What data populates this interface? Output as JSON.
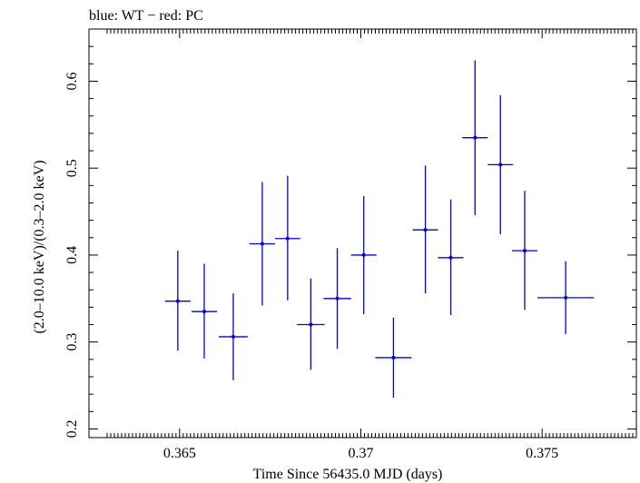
{
  "chart_data": {
    "type": "scatter",
    "title": "blue: WT − red: PC",
    "xlabel": "Time Since 56435.0 MJD (days)",
    "ylabel": "(2.0–10.0 keV)/(0.3–2.0 keV)",
    "xlim": [
      0.3625,
      0.3776
    ],
    "ylim": [
      0.19,
      0.66
    ],
    "x_ticks": [
      0.365,
      0.37,
      0.375
    ],
    "x_tick_labels": [
      "0.365",
      "0.37",
      "0.375"
    ],
    "y_ticks": [
      0.2,
      0.3,
      0.4,
      0.5,
      0.6
    ],
    "y_tick_labels": [
      "0.2",
      "0.3",
      "0.4",
      "0.5",
      "0.6"
    ],
    "grid": false,
    "series": [
      {
        "color": "#0000ee",
        "points": [
          {
            "x": 0.36495,
            "y": 0.347,
            "xerr": 0.00035,
            "ylo": 0.29,
            "yhi": 0.405
          },
          {
            "x": 0.36568,
            "y": 0.335,
            "xerr": 0.00035,
            "ylo": 0.281,
            "yhi": 0.39
          },
          {
            "x": 0.36648,
            "y": 0.306,
            "xerr": 0.0004,
            "ylo": 0.256,
            "yhi": 0.356
          },
          {
            "x": 0.36728,
            "y": 0.413,
            "xerr": 0.00035,
            "ylo": 0.342,
            "yhi": 0.484
          },
          {
            "x": 0.36798,
            "y": 0.419,
            "xerr": 0.00035,
            "ylo": 0.348,
            "yhi": 0.491
          },
          {
            "x": 0.36862,
            "y": 0.32,
            "xerr": 0.00038,
            "ylo": 0.268,
            "yhi": 0.373
          },
          {
            "x": 0.36935,
            "y": 0.35,
            "xerr": 0.00038,
            "ylo": 0.292,
            "yhi": 0.408
          },
          {
            "x": 0.37008,
            "y": 0.4,
            "xerr": 0.00035,
            "ylo": 0.332,
            "yhi": 0.468
          },
          {
            "x": 0.3709,
            "y": 0.282,
            "xerr": 0.0005,
            "ylo": 0.236,
            "yhi": 0.328
          },
          {
            "x": 0.37178,
            "y": 0.429,
            "xerr": 0.00035,
            "ylo": 0.356,
            "yhi": 0.503
          },
          {
            "x": 0.37248,
            "y": 0.397,
            "xerr": 0.00035,
            "ylo": 0.331,
            "yhi": 0.464
          },
          {
            "x": 0.37315,
            "y": 0.535,
            "xerr": 0.00035,
            "ylo": 0.446,
            "yhi": 0.624
          },
          {
            "x": 0.37385,
            "y": 0.504,
            "xerr": 0.00035,
            "ylo": 0.424,
            "yhi": 0.584
          },
          {
            "x": 0.37452,
            "y": 0.405,
            "xerr": 0.00035,
            "ylo": 0.337,
            "yhi": 0.474
          },
          {
            "x": 0.37565,
            "y": 0.351,
            "xerr": 0.00078,
            "ylo": 0.309,
            "yhi": 0.393
          }
        ]
      }
    ]
  }
}
